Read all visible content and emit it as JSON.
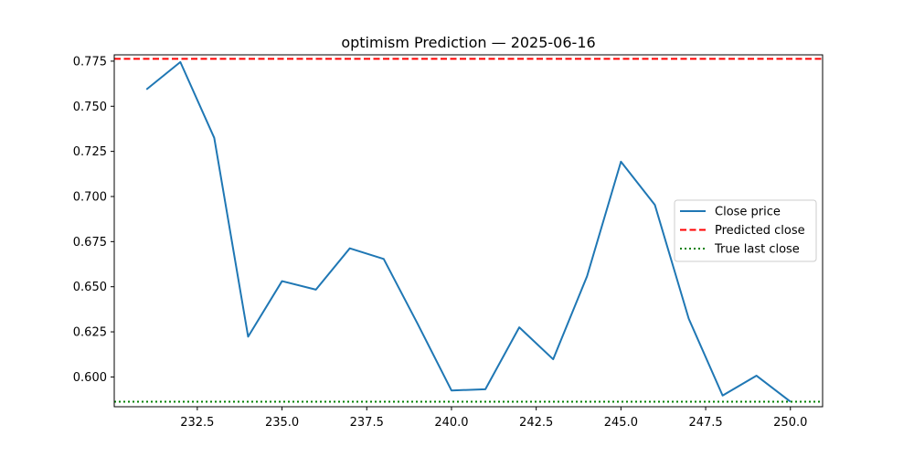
{
  "chart_data": {
    "type": "line",
    "title": "optimism Prediction — 2025-06-16",
    "xlabel": "",
    "ylabel": "",
    "xlim": [
      230.05,
      250.95
    ],
    "ylim": [
      0.5835,
      0.7785
    ],
    "x_ticks": [
      232.5,
      235.0,
      237.5,
      240.0,
      242.5,
      245.0,
      247.5,
      250.0
    ],
    "x_tick_labels": [
      "232.5",
      "235.0",
      "237.5",
      "240.0",
      "242.5",
      "245.0",
      "247.5",
      "250.0"
    ],
    "y_ticks": [
      0.6,
      0.625,
      0.65,
      0.675,
      0.7,
      0.725,
      0.75,
      0.775
    ],
    "y_tick_labels": [
      "0.600",
      "0.625",
      "0.650",
      "0.675",
      "0.700",
      "0.725",
      "0.750",
      "0.775"
    ],
    "grid": false,
    "legend_position": "center-right",
    "series": [
      {
        "name": "Close price",
        "style": "solid",
        "color": "#1f77b4",
        "x": [
          231,
          232,
          233,
          234,
          235,
          236,
          237,
          238,
          239,
          240,
          241,
          242,
          243,
          244,
          245,
          246,
          247,
          248,
          249,
          250
        ],
        "y": [
          0.7593,
          0.7745,
          0.7325,
          0.6223,
          0.6531,
          0.6484,
          0.6713,
          0.6654,
          0.6295,
          0.5925,
          0.5932,
          0.6275,
          0.6098,
          0.6558,
          0.7193,
          0.6954,
          0.6323,
          0.5897,
          0.6007,
          0.5863
        ]
      },
      {
        "name": "Predicted close",
        "style": "dashed",
        "color": "#ff0000",
        "hline": 0.7763
      },
      {
        "name": "True last close",
        "style": "dotted",
        "color": "#008000",
        "hline": 0.5863
      }
    ]
  }
}
